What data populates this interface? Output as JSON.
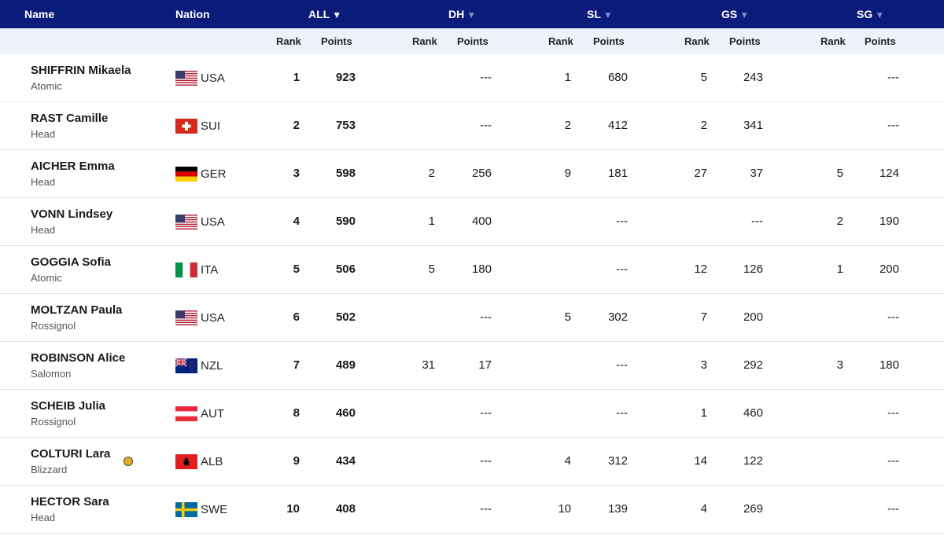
{
  "header": {
    "name": "Name",
    "nation": "Nation",
    "groups": [
      {
        "label": "ALL",
        "arrow": "▼"
      },
      {
        "label": "DH",
        "arrow": "▼"
      },
      {
        "label": "SL",
        "arrow": "▼"
      },
      {
        "label": "GS",
        "arrow": "▼"
      },
      {
        "label": "SG",
        "arrow": "▼"
      }
    ],
    "rank": "Rank",
    "points": "Points"
  },
  "rows": [
    {
      "name": "SHIFFRIN Mikaela",
      "brand": "Atomic",
      "nation": "USA",
      "flag": "usa",
      "all": {
        "rank": "1",
        "points": "923"
      },
      "dh": {
        "rank": "",
        "points": "---"
      },
      "sl": {
        "rank": "1",
        "points": "680"
      },
      "gs": {
        "rank": "5",
        "points": "243"
      },
      "sg": {
        "rank": "",
        "points": "---"
      }
    },
    {
      "name": "RAST Camille",
      "brand": "Head",
      "nation": "SUI",
      "flag": "sui",
      "all": {
        "rank": "2",
        "points": "753"
      },
      "dh": {
        "rank": "",
        "points": "---"
      },
      "sl": {
        "rank": "2",
        "points": "412"
      },
      "gs": {
        "rank": "2",
        "points": "341"
      },
      "sg": {
        "rank": "",
        "points": "---"
      }
    },
    {
      "name": "AICHER Emma",
      "brand": "Head",
      "nation": "GER",
      "flag": "ger",
      "all": {
        "rank": "3",
        "points": "598"
      },
      "dh": {
        "rank": "2",
        "points": "256"
      },
      "sl": {
        "rank": "9",
        "points": "181"
      },
      "gs": {
        "rank": "27",
        "points": "37"
      },
      "sg": {
        "rank": "5",
        "points": "124"
      }
    },
    {
      "name": "VONN Lindsey",
      "brand": "Head",
      "nation": "USA",
      "flag": "usa",
      "all": {
        "rank": "4",
        "points": "590"
      },
      "dh": {
        "rank": "1",
        "points": "400"
      },
      "sl": {
        "rank": "",
        "points": "---"
      },
      "gs": {
        "rank": "",
        "points": "---"
      },
      "sg": {
        "rank": "2",
        "points": "190"
      }
    },
    {
      "name": "GOGGIA Sofia",
      "brand": "Atomic",
      "nation": "ITA",
      "flag": "ita",
      "all": {
        "rank": "5",
        "points": "506"
      },
      "dh": {
        "rank": "5",
        "points": "180"
      },
      "sl": {
        "rank": "",
        "points": "---"
      },
      "gs": {
        "rank": "12",
        "points": "126"
      },
      "sg": {
        "rank": "1",
        "points": "200"
      }
    },
    {
      "name": "MOLTZAN Paula",
      "brand": "Rossignol",
      "nation": "USA",
      "flag": "usa",
      "all": {
        "rank": "6",
        "points": "502"
      },
      "dh": {
        "rank": "",
        "points": "---"
      },
      "sl": {
        "rank": "5",
        "points": "302"
      },
      "gs": {
        "rank": "7",
        "points": "200"
      },
      "sg": {
        "rank": "",
        "points": "---"
      }
    },
    {
      "name": "ROBINSON Alice",
      "brand": "Salomon",
      "nation": "NZL",
      "flag": "nzl",
      "all": {
        "rank": "7",
        "points": "489"
      },
      "dh": {
        "rank": "31",
        "points": "17"
      },
      "sl": {
        "rank": "",
        "points": "---"
      },
      "gs": {
        "rank": "3",
        "points": "292"
      },
      "sg": {
        "rank": "3",
        "points": "180"
      }
    },
    {
      "name": "SCHEIB Julia",
      "brand": "Rossignol",
      "nation": "AUT",
      "flag": "aut",
      "all": {
        "rank": "8",
        "points": "460"
      },
      "dh": {
        "rank": "",
        "points": "---"
      },
      "sl": {
        "rank": "",
        "points": "---"
      },
      "gs": {
        "rank": "1",
        "points": "460"
      },
      "sg": {
        "rank": "",
        "points": "---"
      }
    },
    {
      "name": "COLTURI Lara",
      "brand": "Blizzard",
      "nation": "ALB",
      "flag": "alb",
      "badge": true,
      "all": {
        "rank": "9",
        "points": "434"
      },
      "dh": {
        "rank": "",
        "points": "---"
      },
      "sl": {
        "rank": "4",
        "points": "312"
      },
      "gs": {
        "rank": "14",
        "points": "122"
      },
      "sg": {
        "rank": "",
        "points": "---"
      }
    },
    {
      "name": "HECTOR Sara",
      "brand": "Head",
      "nation": "SWE",
      "flag": "swe",
      "all": {
        "rank": "10",
        "points": "408"
      },
      "dh": {
        "rank": "",
        "points": "---"
      },
      "sl": {
        "rank": "10",
        "points": "139"
      },
      "gs": {
        "rank": "4",
        "points": "269"
      },
      "sg": {
        "rank": "",
        "points": "---"
      }
    }
  ]
}
